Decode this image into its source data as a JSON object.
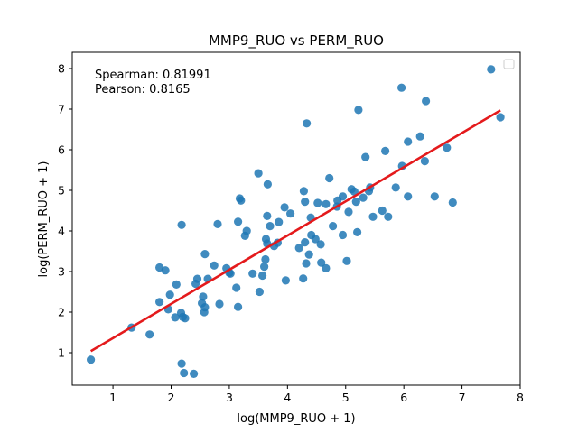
{
  "chart_data": {
    "type": "scatter",
    "title": "MMP9_RUO vs PERM_RUO",
    "xlabel": "log(MMP9_RUO + 1)",
    "ylabel": "log(PERM_RUO + 1)",
    "xlim": [
      0.3,
      8.0
    ],
    "ylim": [
      0.2,
      8.4
    ],
    "xticks": [
      1,
      2,
      3,
      4,
      5,
      6,
      7,
      8
    ],
    "yticks": [
      1,
      2,
      3,
      4,
      5,
      6,
      7,
      8
    ],
    "grid": false,
    "legend": "top-right (empty)",
    "annotations": [
      "Spearman: 0.81991",
      "Pearson: 0.8165"
    ],
    "point_color": "#1f77b4",
    "fit_color": "#e41a1c",
    "points": [
      [
        0.62,
        0.83
      ],
      [
        1.32,
        1.62
      ],
      [
        1.63,
        1.45
      ],
      [
        1.8,
        3.1
      ],
      [
        1.8,
        2.25
      ],
      [
        1.9,
        3.03
      ],
      [
        1.95,
        2.07
      ],
      [
        1.98,
        2.43
      ],
      [
        2.07,
        1.87
      ],
      [
        2.09,
        2.68
      ],
      [
        2.17,
        1.98
      ],
      [
        2.18,
        4.15
      ],
      [
        2.18,
        0.73
      ],
      [
        2.2,
        1.88
      ],
      [
        2.22,
        0.5
      ],
      [
        2.24,
        1.85
      ],
      [
        2.39,
        0.48
      ],
      [
        2.42,
        2.7
      ],
      [
        2.45,
        2.82
      ],
      [
        2.53,
        2.22
      ],
      [
        2.55,
        2.38
      ],
      [
        2.57,
        2.0
      ],
      [
        2.58,
        2.12
      ],
      [
        2.58,
        3.43
      ],
      [
        2.63,
        2.82
      ],
      [
        2.74,
        3.15
      ],
      [
        2.8,
        4.17
      ],
      [
        2.83,
        2.2
      ],
      [
        2.95,
        3.08
      ],
      [
        3.0,
        2.97
      ],
      [
        3.02,
        2.95
      ],
      [
        3.12,
        2.6
      ],
      [
        3.15,
        2.13
      ],
      [
        3.15,
        4.23
      ],
      [
        3.18,
        4.8
      ],
      [
        3.2,
        4.75
      ],
      [
        3.27,
        3.88
      ],
      [
        3.3,
        4.0
      ],
      [
        3.4,
        2.95
      ],
      [
        3.5,
        5.42
      ],
      [
        3.52,
        2.5
      ],
      [
        3.57,
        2.9
      ],
      [
        3.6,
        3.12
      ],
      [
        3.62,
        3.3
      ],
      [
        3.63,
        3.8
      ],
      [
        3.65,
        3.69
      ],
      [
        3.65,
        4.37
      ],
      [
        3.66,
        5.15
      ],
      [
        3.7,
        4.12
      ],
      [
        3.77,
        3.63
      ],
      [
        3.83,
        3.71
      ],
      [
        3.85,
        4.22
      ],
      [
        3.95,
        4.58
      ],
      [
        3.97,
        2.78
      ],
      [
        4.05,
        4.43
      ],
      [
        4.2,
        3.58
      ],
      [
        4.27,
        2.83
      ],
      [
        4.28,
        4.98
      ],
      [
        4.3,
        3.72
      ],
      [
        4.3,
        4.72
      ],
      [
        4.32,
        3.2
      ],
      [
        4.33,
        6.65
      ],
      [
        4.37,
        3.42
      ],
      [
        4.4,
        4.33
      ],
      [
        4.41,
        3.9
      ],
      [
        4.48,
        3.8
      ],
      [
        4.52,
        4.69
      ],
      [
        4.57,
        3.67
      ],
      [
        4.58,
        3.22
      ],
      [
        4.66,
        4.66
      ],
      [
        4.66,
        3.08
      ],
      [
        4.72,
        5.3
      ],
      [
        4.78,
        4.12
      ],
      [
        4.85,
        4.6
      ],
      [
        4.86,
        4.75
      ],
      [
        4.95,
        3.9
      ],
      [
        4.95,
        4.85
      ],
      [
        5.02,
        3.26
      ],
      [
        5.05,
        4.47
      ],
      [
        5.1,
        5.03
      ],
      [
        5.15,
        4.97
      ],
      [
        5.18,
        4.72
      ],
      [
        5.2,
        3.97
      ],
      [
        5.22,
        6.98
      ],
      [
        5.3,
        4.82
      ],
      [
        5.34,
        5.82
      ],
      [
        5.4,
        4.98
      ],
      [
        5.42,
        5.07
      ],
      [
        5.47,
        4.35
      ],
      [
        5.63,
        4.5
      ],
      [
        5.68,
        5.97
      ],
      [
        5.73,
        4.35
      ],
      [
        5.86,
        5.07
      ],
      [
        5.96,
        7.53
      ],
      [
        5.97,
        5.6
      ],
      [
        6.07,
        6.2
      ],
      [
        6.07,
        4.85
      ],
      [
        6.28,
        6.33
      ],
      [
        6.36,
        5.72
      ],
      [
        6.38,
        7.2
      ],
      [
        6.53,
        4.85
      ],
      [
        6.74,
        6.05
      ],
      [
        6.84,
        4.7
      ],
      [
        7.5,
        7.98
      ],
      [
        7.66,
        6.8
      ]
    ],
    "fit_line": {
      "x": [
        0.62,
        7.66
      ],
      "y": [
        1.04,
        6.97
      ]
    }
  }
}
